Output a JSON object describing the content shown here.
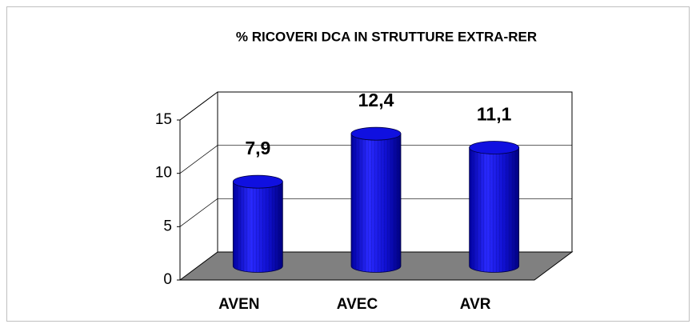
{
  "chart_data": {
    "type": "bar",
    "title": "% RICOVERI DCA IN STRUTTURE EXTRA-RER",
    "categories": [
      "AVEN",
      "AVEC",
      "AVR"
    ],
    "values": [
      7.9,
      12.4,
      11.1
    ],
    "value_labels": [
      "7,9",
      "12,4",
      "11,1"
    ],
    "color": "#1010e0",
    "ylim": [
      0,
      15
    ],
    "yticks": [
      0,
      5,
      10,
      15
    ],
    "grid": true
  }
}
